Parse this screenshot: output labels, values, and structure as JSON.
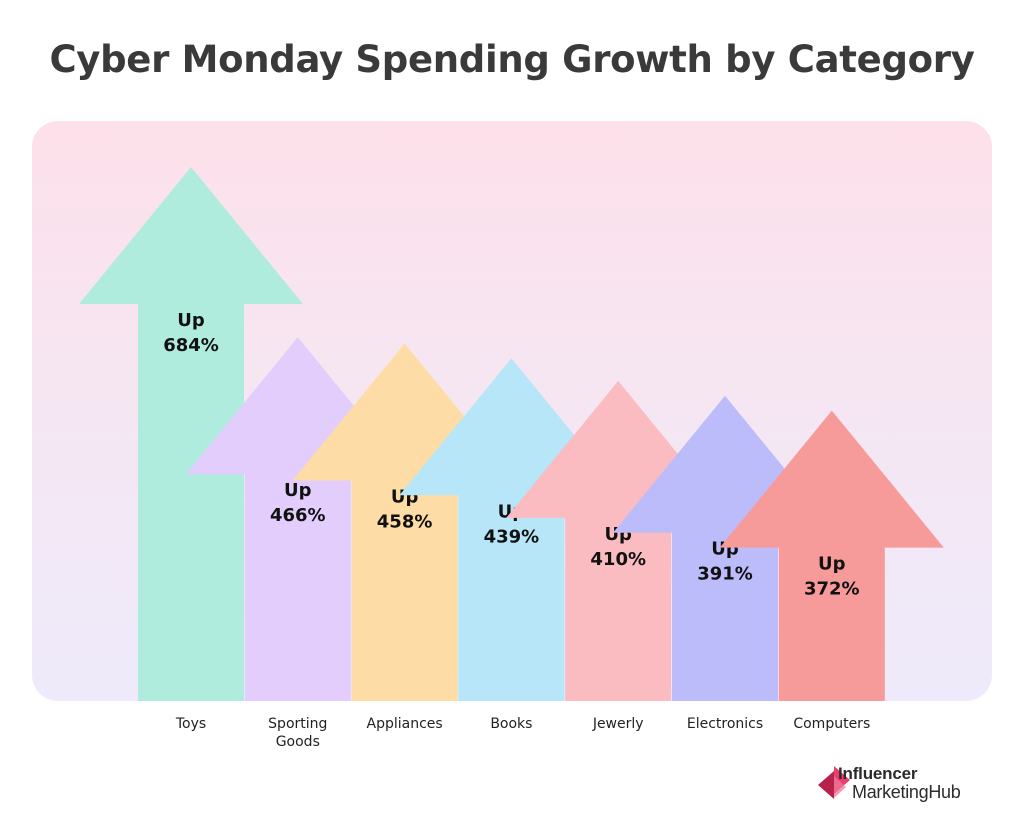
{
  "chart_data": {
    "type": "bar",
    "title": "Cyber Monday Spending Growth by Category",
    "categories": [
      "Toys",
      "Sporting Goods",
      "Appliances",
      "Books",
      "Jewerly",
      "Electronics",
      "Computers"
    ],
    "values": [
      684,
      466,
      458,
      439,
      410,
      391,
      372
    ],
    "value_labels": [
      [
        "Up",
        "684%"
      ],
      [
        "Up",
        "466%"
      ],
      [
        "Up",
        "458%"
      ],
      [
        "Up",
        "439%"
      ],
      [
        "Up",
        "410%"
      ],
      [
        "Up",
        "391%"
      ],
      [
        "Up",
        "372%"
      ]
    ],
    "colors": [
      "#b0ecde",
      "#e2cdfc",
      "#fddca6",
      "#b6e6f7",
      "#fbbcc1",
      "#bcbcfb",
      "#f69a9a"
    ],
    "mark": "arrow"
  },
  "brand": {
    "line1": "Influencer",
    "line2": "MarketingHub",
    "accent_color": "#e63f6c"
  }
}
